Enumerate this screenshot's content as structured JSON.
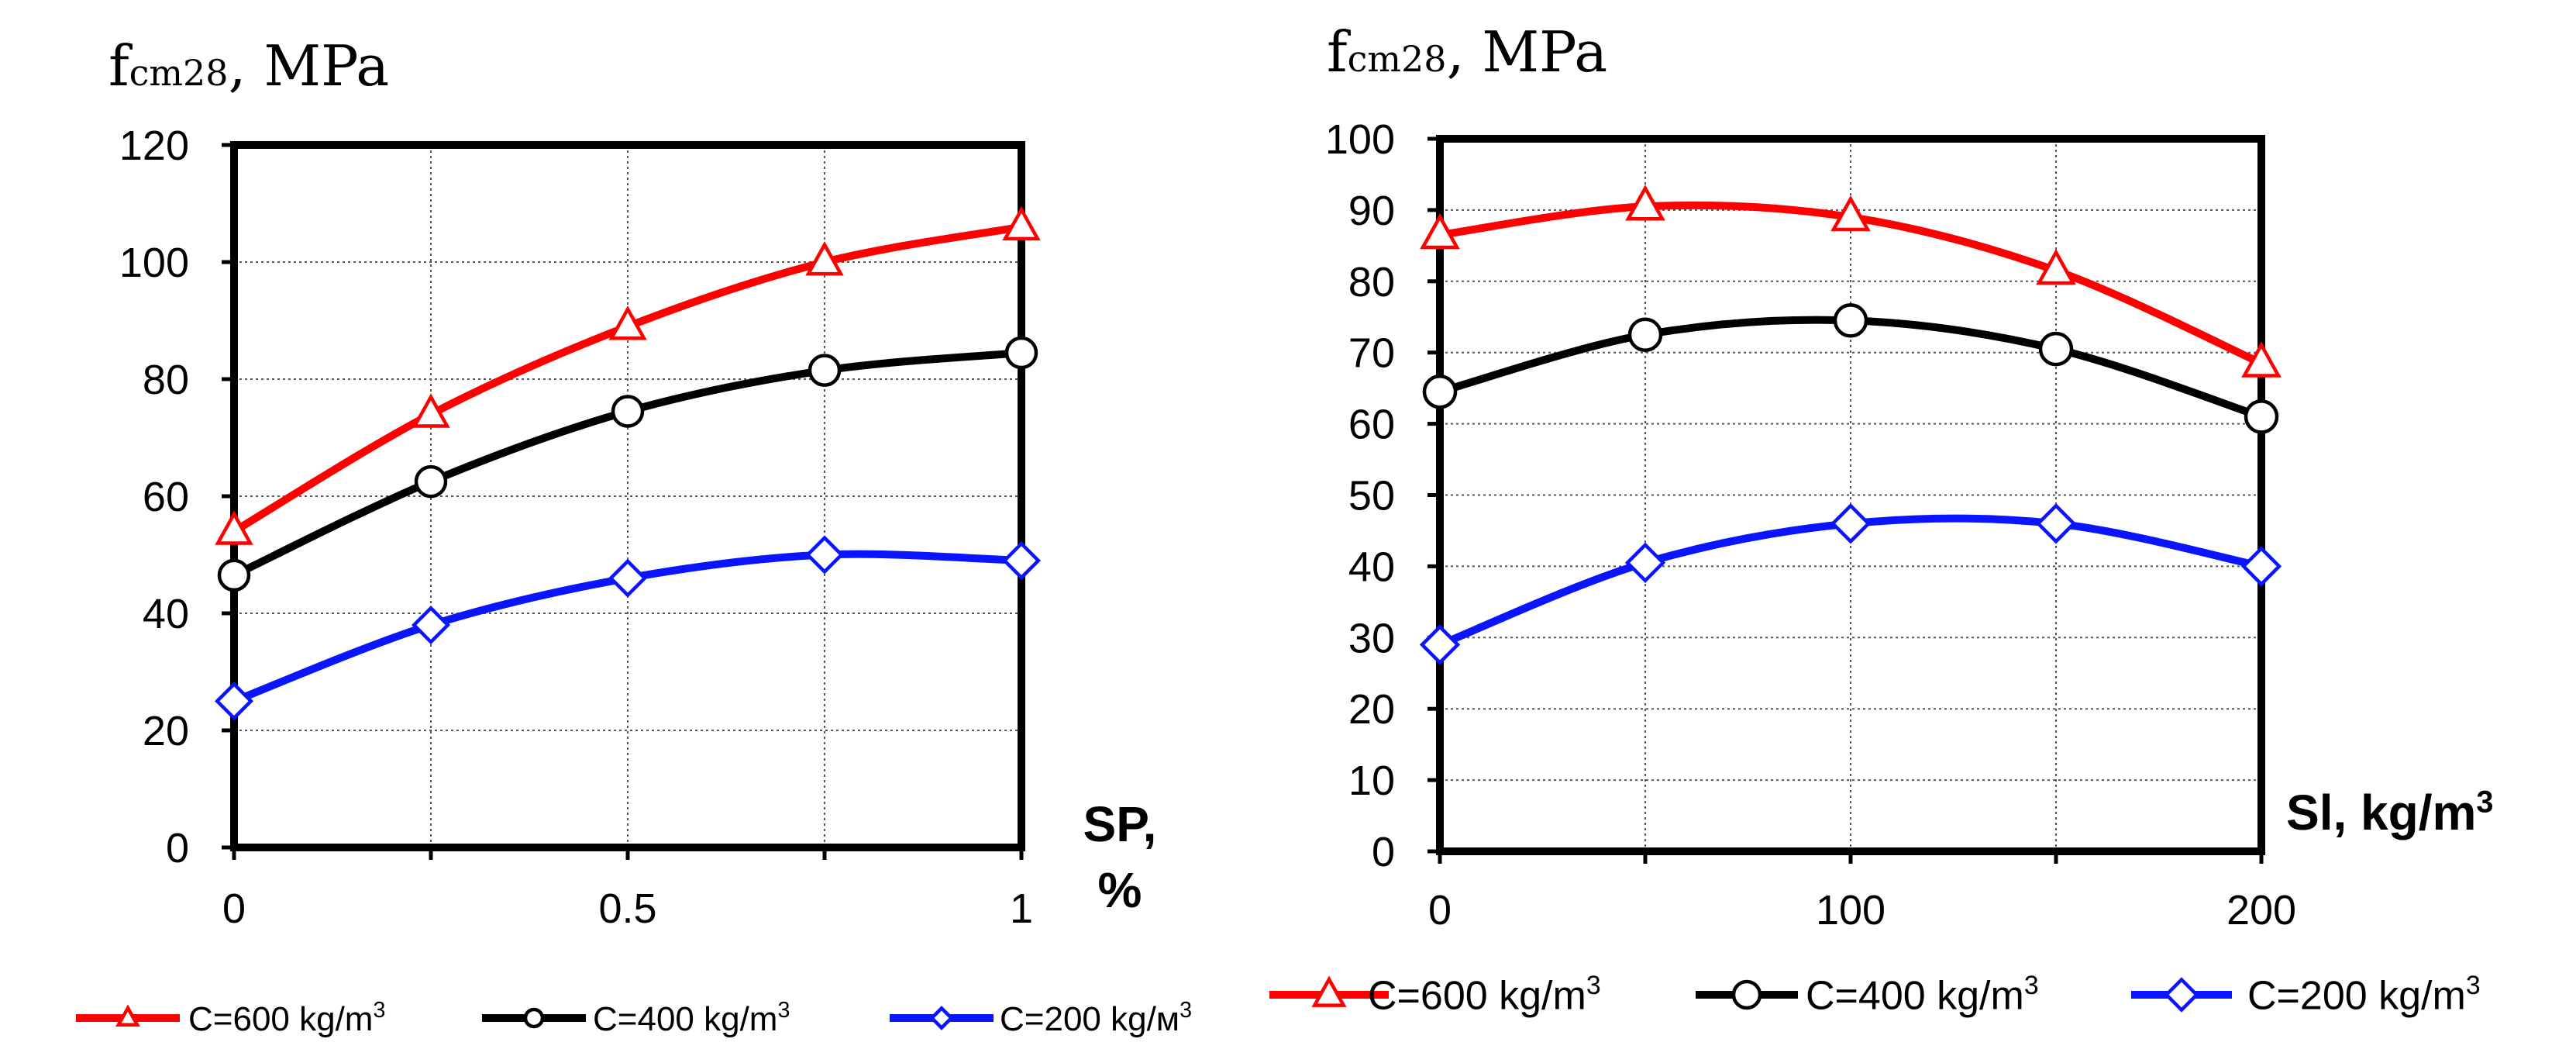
{
  "chart_data": [
    {
      "type": "line",
      "title": "",
      "ylabel": {
        "main": "f",
        "sub": "cm28",
        "unit": ", MPa"
      },
      "xlabel": {
        "line1": "SP,",
        "line2": "%"
      },
      "x": [
        0,
        0.25,
        0.5,
        0.75,
        1
      ],
      "xlim": [
        0,
        1
      ],
      "ylim": [
        0,
        120
      ],
      "xticks": [
        0,
        0.25,
        0.5,
        0.75,
        1
      ],
      "xtick_labels": [
        "0",
        "",
        "0.5",
        "",
        "1"
      ],
      "yticks": [
        0,
        20,
        40,
        60,
        80,
        100,
        120
      ],
      "ytick_labels": [
        "0",
        "20",
        "40",
        "60",
        "80",
        "100",
        "120"
      ],
      "grid": true,
      "series": [
        {
          "name": "C=600 kg/m",
          "sup": "3",
          "marker": "triangle",
          "values": [
            54,
            74,
            89,
            100,
            106
          ]
        },
        {
          "name": "C=400 kg/m",
          "sup": "3",
          "marker": "circle",
          "values": [
            46.5,
            62.5,
            74.5,
            81.5,
            84.5
          ]
        },
        {
          "name": "C=200 kg/м",
          "sup": "3",
          "marker": "diamond",
          "values": [
            25,
            38,
            46,
            50,
            49
          ]
        }
      ],
      "legend_position": "bottom"
    },
    {
      "type": "line",
      "title": "",
      "ylabel": {
        "main": "f",
        "sub": "cm28",
        "unit": ", MPa"
      },
      "xlabel": {
        "line1": "Sl, kg/m",
        "sup": "3"
      },
      "x": [
        0,
        50,
        100,
        150,
        200
      ],
      "xlim": [
        0,
        200
      ],
      "ylim": [
        0,
        100
      ],
      "xticks": [
        0,
        50,
        100,
        150,
        200
      ],
      "xtick_labels": [
        "0",
        "",
        "100",
        "",
        "200"
      ],
      "yticks": [
        0,
        10,
        20,
        30,
        40,
        50,
        60,
        70,
        80,
        90,
        100
      ],
      "ytick_labels": [
        "0",
        "10",
        "20",
        "30",
        "40",
        "50",
        "60",
        "70",
        "80",
        "90",
        "100"
      ],
      "grid": true,
      "series": [
        {
          "name": "C=600 kg/m",
          "sup": "3",
          "marker": "triangle",
          "values": [
            86.5,
            90.5,
            89,
            81.5,
            68.5
          ]
        },
        {
          "name": "C=400 kg/m",
          "sup": "3",
          "marker": "circle",
          "values": [
            64.5,
            72.5,
            74.5,
            70.5,
            61
          ]
        },
        {
          "name": "C=200 kg/m",
          "sup": "3",
          "marker": "diamond",
          "values": [
            29,
            40.5,
            46,
            46,
            40
          ]
        }
      ],
      "legend_position": "bottom"
    }
  ],
  "colors": {
    "c600": "#ff0000",
    "c400": "#000000",
    "c200": "#0a14ff"
  }
}
